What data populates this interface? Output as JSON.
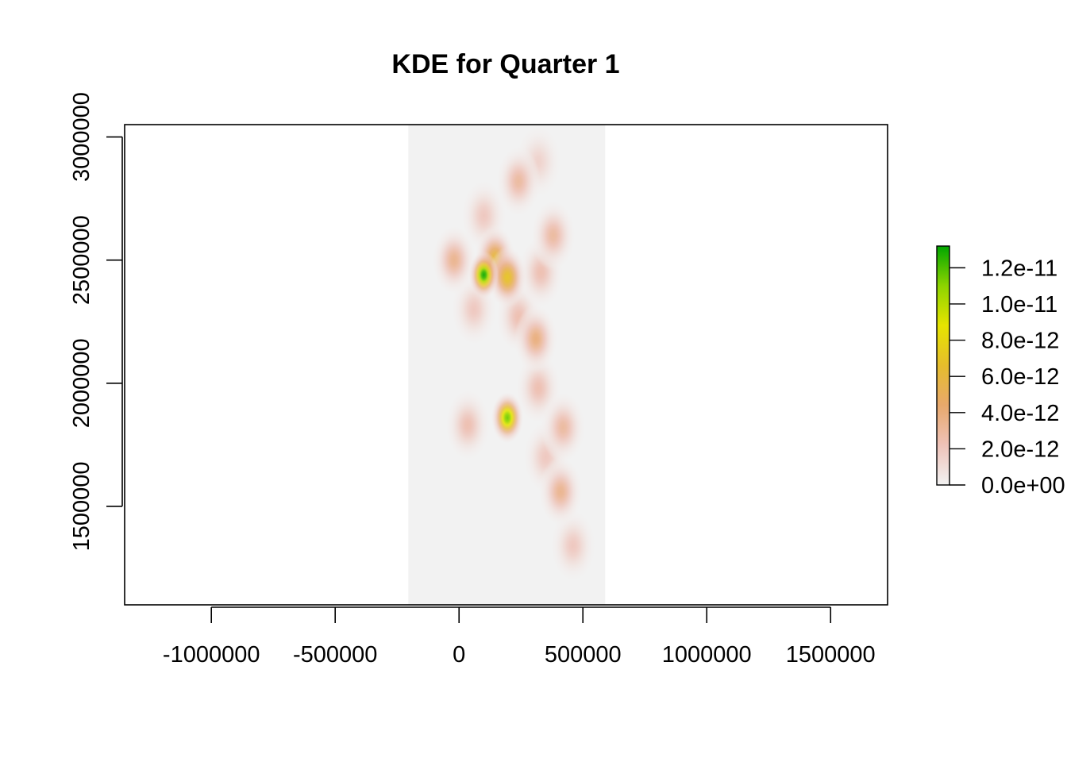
{
  "chart_data": {
    "type": "heatmap",
    "title": "KDE for Quarter 1",
    "xlabel": "",
    "ylabel": "",
    "xlim": [
      -1350000,
      1730000
    ],
    "ylim": [
      1100000,
      3050000
    ],
    "x_ticks": [
      -1000000,
      -500000,
      0,
      500000,
      1000000,
      1500000
    ],
    "x_tick_labels": [
      "-1000000",
      "-500000",
      "0",
      "500000",
      "1000000",
      "1500000"
    ],
    "y_ticks": [
      1500000,
      2000000,
      2500000,
      3000000
    ],
    "y_tick_labels": [
      "1500000",
      "2000000",
      "2500000",
      "3000000"
    ],
    "raster_extent": {
      "xmin": -205000,
      "xmax": 590000,
      "ymin": 1100000,
      "ymax": 3050000
    },
    "raster_background": "#f2f2f2",
    "density_peaks": [
      {
        "x": 100000,
        "y": 2440000,
        "density": 1.3e-11
      },
      {
        "x": 195000,
        "y": 2430000,
        "density": 7e-12
      },
      {
        "x": 145000,
        "y": 2510000,
        "density": 6e-12
      },
      {
        "x": 195000,
        "y": 1860000,
        "density": 1.15e-11
      },
      {
        "x": 310000,
        "y": 2180000,
        "density": 4e-12
      },
      {
        "x": -20000,
        "y": 2500000,
        "density": 3.5e-12
      },
      {
        "x": 240000,
        "y": 2820000,
        "density": 3e-12
      },
      {
        "x": 380000,
        "y": 2600000,
        "density": 3e-12
      },
      {
        "x": 420000,
        "y": 1820000,
        "density": 3e-12
      },
      {
        "x": 410000,
        "y": 1560000,
        "density": 3.5e-12
      },
      {
        "x": 35000,
        "y": 1830000,
        "density": 2.5e-12
      },
      {
        "x": 460000,
        "y": 1340000,
        "density": 2e-12
      },
      {
        "x": 320000,
        "y": 1980000,
        "density": 2.5e-12
      },
      {
        "x": 240000,
        "y": 2270000,
        "density": 2.5e-12
      },
      {
        "x": 60000,
        "y": 2300000,
        "density": 2e-12
      },
      {
        "x": 330000,
        "y": 2450000,
        "density": 2.5e-12
      },
      {
        "x": 350000,
        "y": 1700000,
        "density": 2e-12
      },
      {
        "x": 100000,
        "y": 2680000,
        "density": 2e-12
      },
      {
        "x": 320000,
        "y": 2900000,
        "density": 1.5e-12
      }
    ],
    "legend": {
      "placement": "right",
      "min": 0,
      "max": 1.32e-11,
      "ticks": [
        0,
        2e-12,
        4e-12,
        6e-12,
        8e-12,
        1e-11,
        1.2e-11
      ],
      "tick_labels": [
        "0.0e+00",
        "2.0e-12",
        "4.0e-12",
        "6.0e-12",
        "8.0e-12",
        "1.0e-11",
        "1.2e-11"
      ],
      "colors": [
        "#f2f2f2",
        "#eec2b8",
        "#e8a86c",
        "#e6bd2c",
        "#e6e400",
        "#8ed400",
        "#00a600"
      ]
    }
  }
}
